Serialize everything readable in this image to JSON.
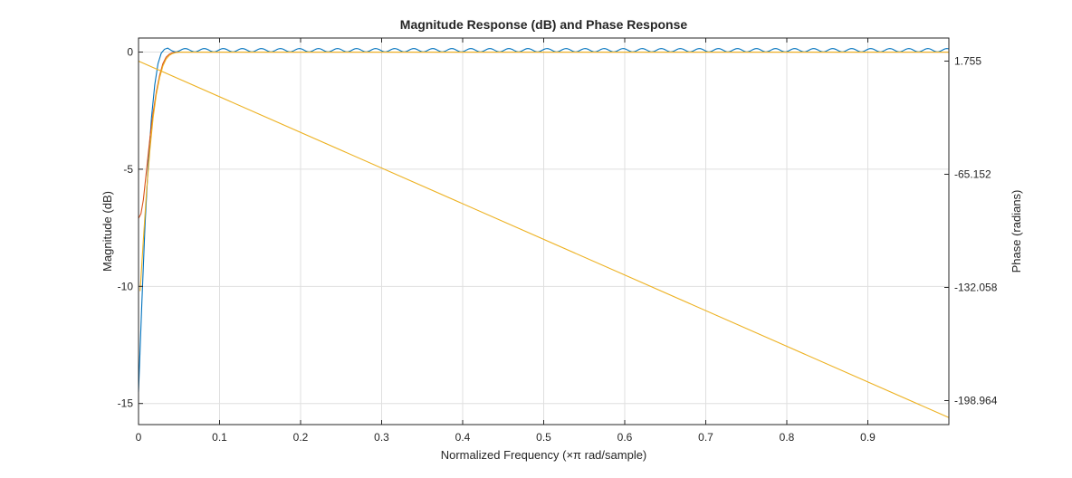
{
  "chart_data": {
    "type": "line",
    "title": "Magnitude Response (dB) and Phase Response",
    "xlabel": "Normalized Frequency (×π rad/sample)",
    "ylabel_left": "Magnitude (dB)",
    "ylabel_right": "Phase (radians)",
    "xlim": [
      0,
      1
    ],
    "ylim_left": [
      -15.9,
      0.6
    ],
    "ylim_right": [
      -213.15,
      15.4
    ],
    "x_ticks": [
      0,
      0.1,
      0.2,
      0.3,
      0.4,
      0.5,
      0.6,
      0.7,
      0.8,
      0.9
    ],
    "x_tick_labels": [
      "0",
      "0.1",
      "0.2",
      "0.3",
      "0.4",
      "0.5",
      "0.6",
      "0.7",
      "0.8",
      "0.9"
    ],
    "y_left_ticks": [
      0,
      -5,
      -10,
      -15
    ],
    "y_left_tick_labels": [
      "0",
      "-5",
      "-10",
      "-15"
    ],
    "y_right_ticks": [
      1.755,
      -65.152,
      -132.058,
      -198.964
    ],
    "y_right_tick_labels": [
      "1.755",
      "-65.152",
      "-132.058",
      "-198.964"
    ],
    "grid": true,
    "colors": {
      "axes": "#262626",
      "grid": "#dfdfdf",
      "blue": "#0072BD",
      "red": "#D95319",
      "orange": "#EDB120"
    },
    "series": [
      {
        "axis": "left",
        "color": "#0072BD",
        "x": [
          0,
          0.004,
          0.008,
          0.012,
          0.016,
          0.02,
          0.024,
          0.028,
          0.032,
          0.036,
          0.04,
          0.05,
          0.06,
          0.07,
          0.08,
          0.09,
          0.1,
          0.2,
          0.3,
          0.4,
          0.5,
          0.6,
          0.7,
          0.8,
          0.9,
          1.0
        ],
        "values": [
          -14.5,
          -10.8,
          -7.4,
          -4.8,
          -2.8,
          -1.4,
          -0.5,
          -0.05,
          0.12,
          0.17,
          0.12,
          0.05,
          0.15,
          0.08,
          0.15,
          0.08,
          0.15,
          0.15,
          0.15,
          0.15,
          0.15,
          0.15,
          0.15,
          0.15,
          0.15,
          0.15
        ],
        "ripple": {
          "from": 0.04,
          "amplitude": 0.07,
          "offset": 0.08,
          "period": 0.0235
        }
      },
      {
        "axis": "left",
        "color": "#D95319",
        "x": [
          0,
          0.003,
          0.006,
          0.01,
          0.014,
          0.018,
          0.022,
          0.026,
          0.03,
          0.034,
          0.038,
          0.042,
          0.046,
          0.05,
          0.055,
          0.06,
          0.1,
          0.5,
          1.0
        ],
        "values": [
          -7.1,
          -6.9,
          -6.3,
          -5.0,
          -3.7,
          -2.6,
          -1.7,
          -1.0,
          -0.5,
          -0.22,
          -0.09,
          -0.03,
          -0.01,
          0,
          0,
          0,
          0,
          0,
          0
        ]
      },
      {
        "axis": "left",
        "color": "#EDB120",
        "x": [
          0.002,
          0.006,
          0.01,
          0.014,
          0.018,
          0.022,
          0.026,
          0.03,
          0.034,
          0.038,
          0.042,
          0.046,
          0.05,
          0.055,
          0.06,
          0.1,
          0.5,
          1.0
        ],
        "values": [
          -10.2,
          -8.0,
          -5.9,
          -4.2,
          -2.8,
          -1.8,
          -1.1,
          -0.6,
          -0.3,
          -0.14,
          -0.06,
          -0.02,
          0,
          0,
          0,
          0,
          0,
          0
        ]
      },
      {
        "axis": "right",
        "color": "#EDB120",
        "x": [
          0,
          1.0
        ],
        "values": [
          1.755,
          -209.0
        ]
      }
    ]
  }
}
